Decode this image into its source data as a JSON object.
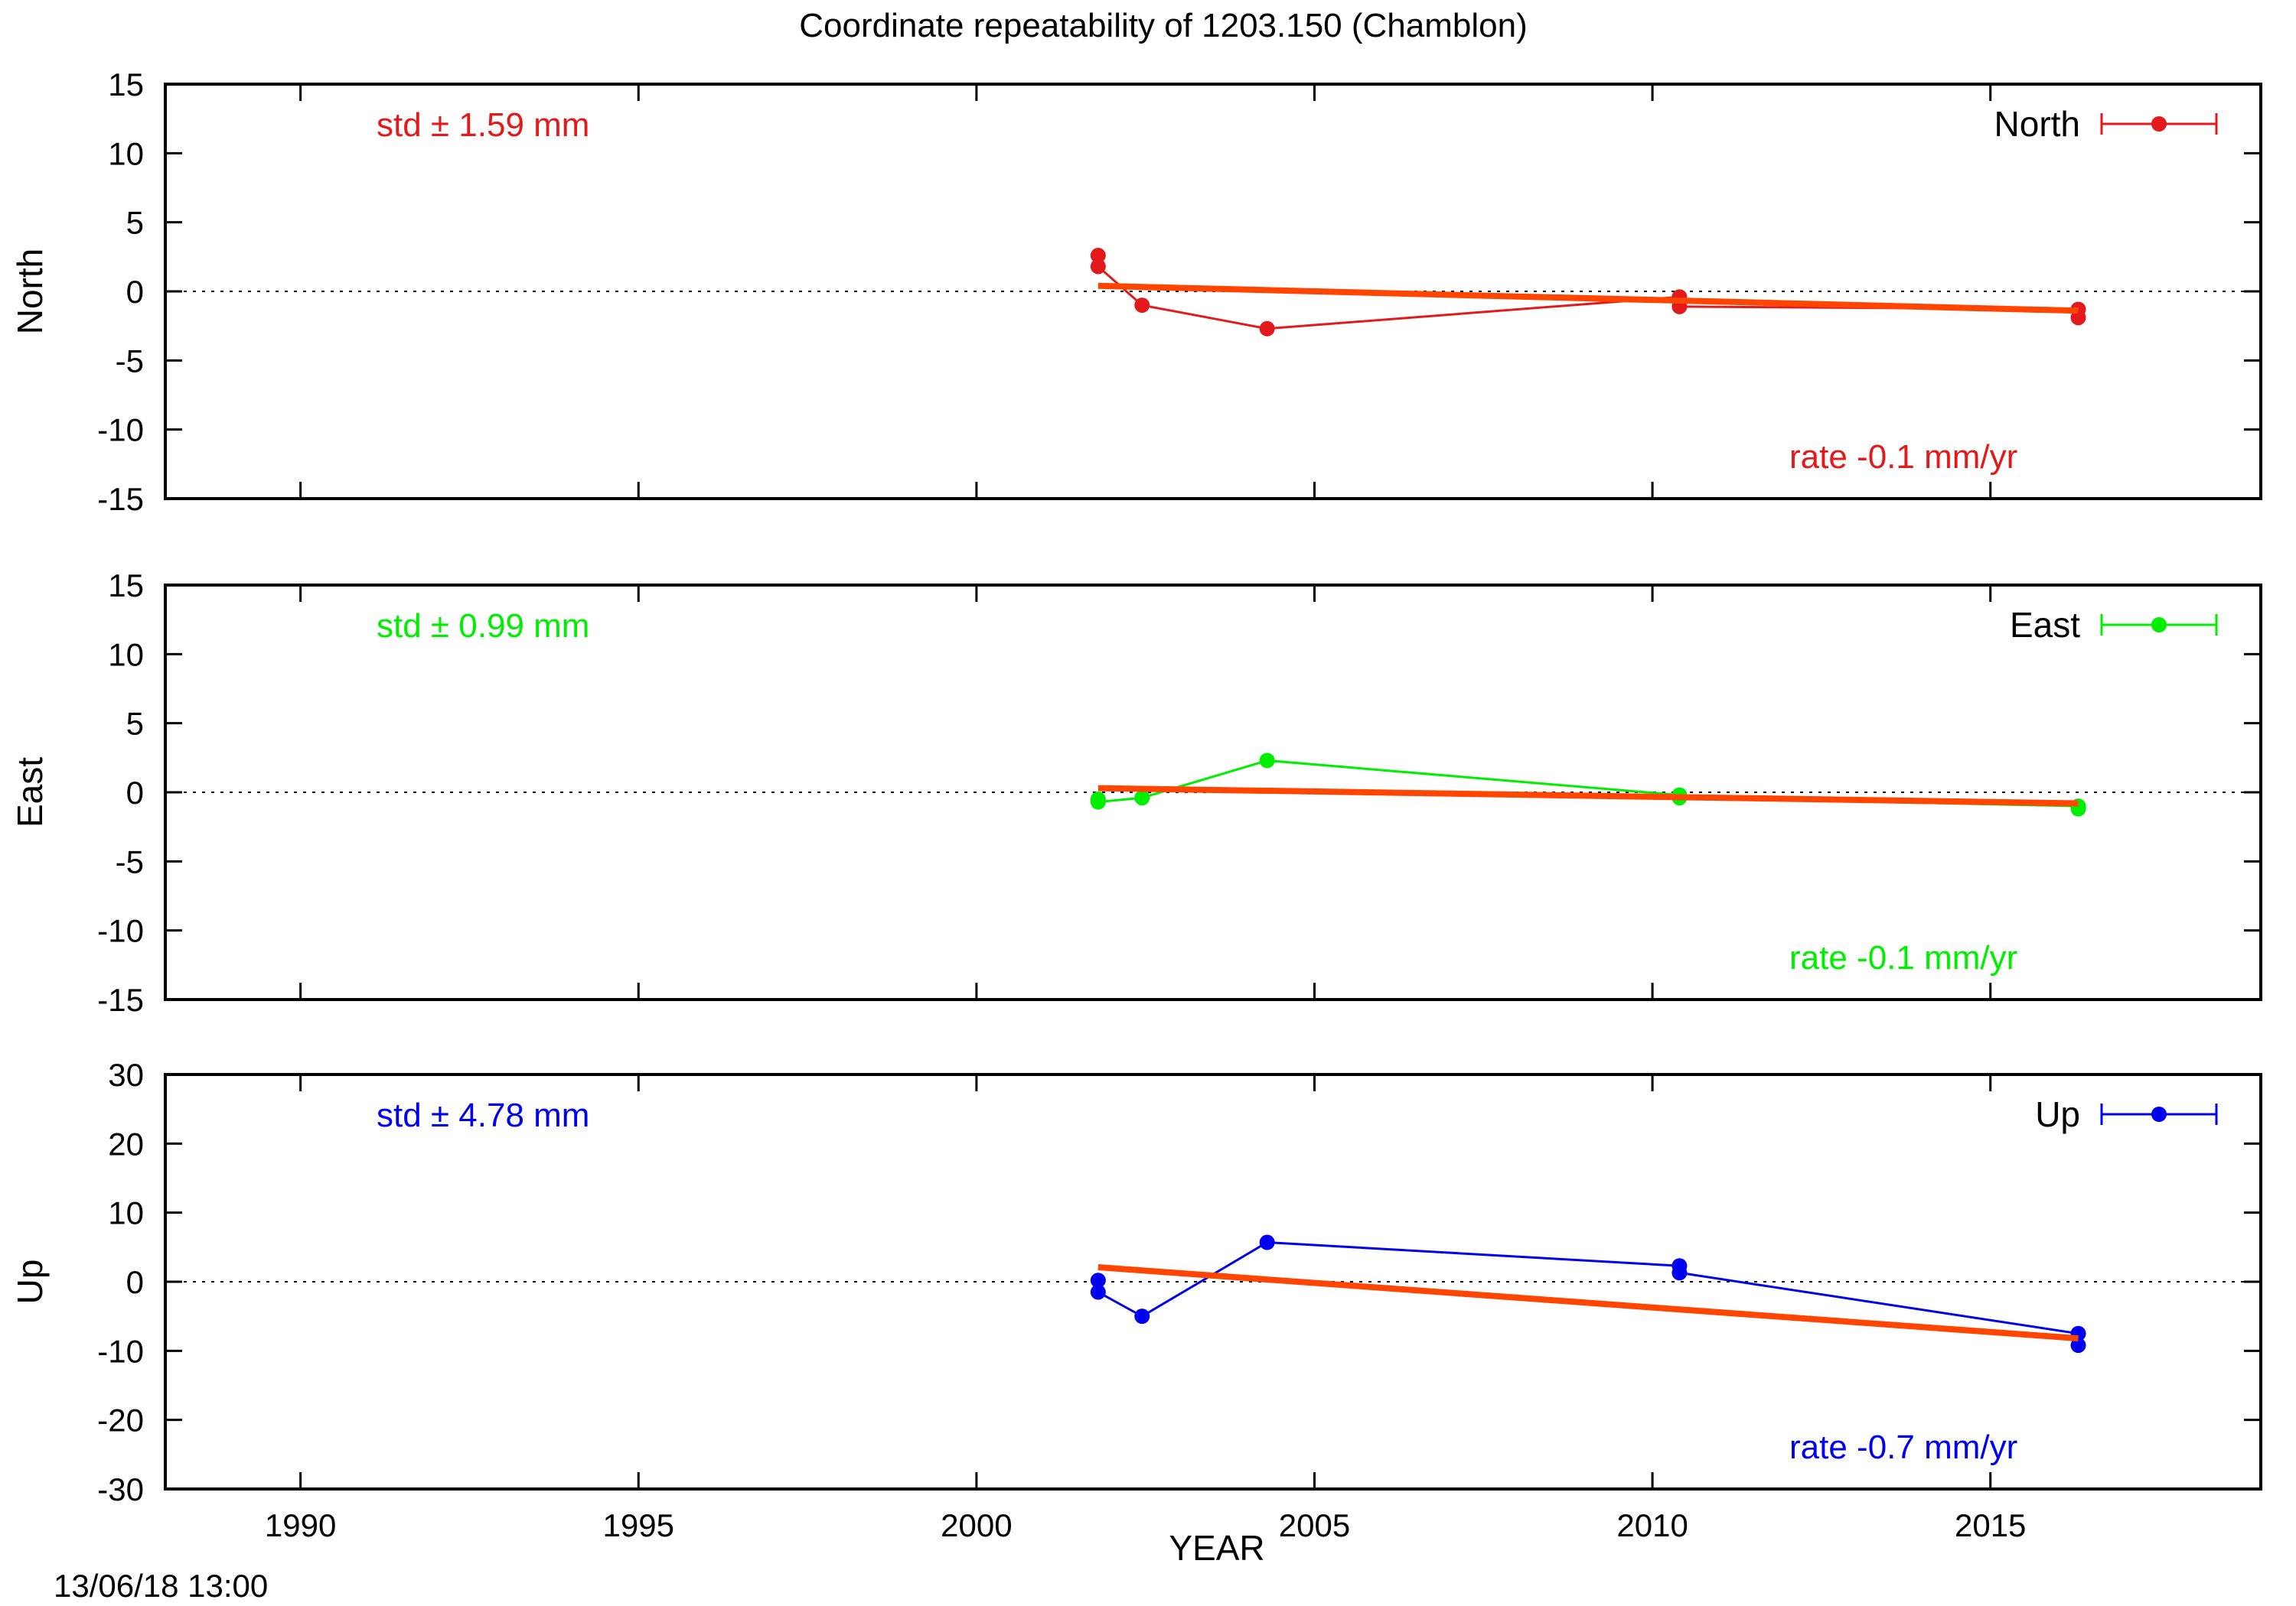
{
  "title": "Coordinate repeatability of 1203.150        (Chamblon)",
  "xlabel": "YEAR",
  "timestamp": "13/06/18 13:00",
  "chart_data": [
    {
      "type": "line",
      "panel": "North",
      "ylabel": "North",
      "xlim": [
        1988,
        2019
      ],
      "ylim": [
        -15,
        15
      ],
      "xticks": [
        1990,
        1995,
        2000,
        2005,
        2010,
        2015
      ],
      "yticks": [
        -15,
        -10,
        -5,
        0,
        5,
        10,
        15
      ],
      "legend": "North",
      "legend_position": "top-right",
      "std_text": "std ± 1.59 mm",
      "rate_text": "rate -0.1 mm/yr",
      "color": "#e31a1c",
      "trend_color": "#ff4500",
      "zero_line": true,
      "series": [
        {
          "x": [
            2001.8,
            2001.8,
            2002.45,
            2004.3,
            2010.4,
            2010.4,
            2016.3,
            2016.3
          ],
          "y": [
            2.6,
            1.8,
            -1.0,
            -2.7,
            -0.4,
            -1.1,
            -1.3,
            -1.9
          ]
        }
      ],
      "trend": {
        "x": [
          2001.8,
          2016.3
        ],
        "y": [
          0.4,
          -1.4
        ]
      }
    },
    {
      "type": "line",
      "panel": "East",
      "ylabel": "East",
      "xlim": [
        1988,
        2019
      ],
      "ylim": [
        -15,
        15
      ],
      "xticks": [
        1990,
        1995,
        2000,
        2005,
        2010,
        2015
      ],
      "yticks": [
        -15,
        -10,
        -5,
        0,
        5,
        10,
        15
      ],
      "legend": "East",
      "legend_position": "top-right",
      "std_text": "std ± 0.99 mm",
      "rate_text": "rate -0.1 mm/yr",
      "color": "#00ee00",
      "trend_color": "#ff4500",
      "zero_line": true,
      "series": [
        {
          "x": [
            2001.8,
            2001.8,
            2002.45,
            2004.3,
            2010.4,
            2010.4,
            2016.3,
            2016.3
          ],
          "y": [
            -0.5,
            -0.7,
            -0.4,
            2.3,
            -0.2,
            -0.4,
            -1.0,
            -1.2
          ]
        }
      ],
      "trend": {
        "x": [
          2001.8,
          2016.3
        ],
        "y": [
          0.3,
          -0.8
        ]
      }
    },
    {
      "type": "line",
      "panel": "Up",
      "ylabel": "Up",
      "xlim": [
        1988,
        2019
      ],
      "ylim": [
        -30,
        30
      ],
      "xticks": [
        1990,
        1995,
        2000,
        2005,
        2010,
        2015
      ],
      "yticks": [
        -30,
        -20,
        -10,
        0,
        10,
        20,
        30
      ],
      "legend": "Up",
      "legend_position": "top-right",
      "std_text": "std ± 4.78 mm",
      "rate_text": "rate -0.7 mm/yr",
      "color": "#0000ee",
      "trend_color": "#ff4500",
      "zero_line": true,
      "series": [
        {
          "x": [
            2001.8,
            2001.8,
            2002.45,
            2004.3,
            2010.4,
            2010.4,
            2016.3,
            2016.3
          ],
          "y": [
            0.2,
            -1.5,
            -5.0,
            5.7,
            2.3,
            1.3,
            -7.5,
            -9.2
          ]
        }
      ],
      "trend": {
        "x": [
          2001.8,
          2016.3
        ],
        "y": [
          2.1,
          -8.2
        ]
      }
    }
  ]
}
